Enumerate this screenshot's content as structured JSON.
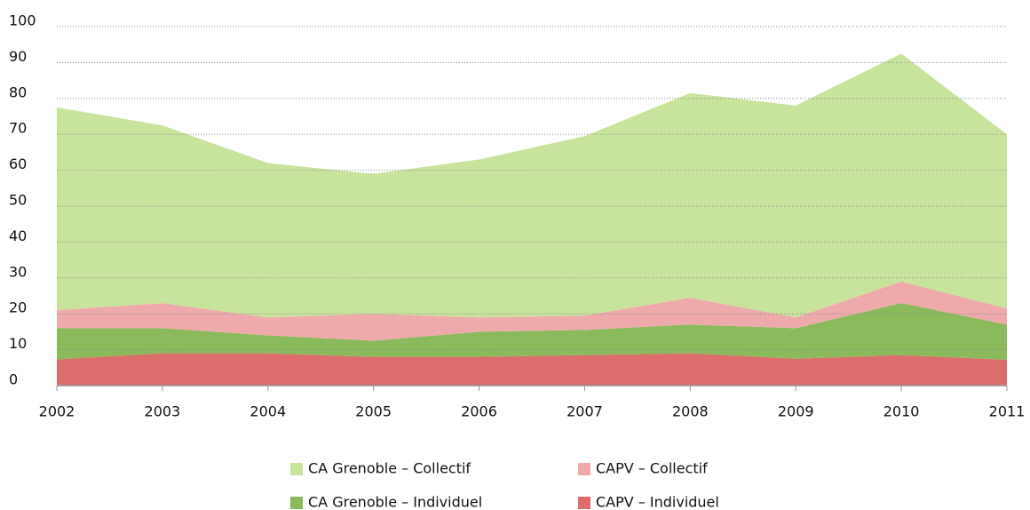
{
  "chart_data": {
    "type": "stacked-area",
    "x": [
      2002,
      2003,
      2004,
      2005,
      2006,
      2007,
      2008,
      2009,
      2010,
      2011
    ],
    "xlim": [
      2002,
      2011
    ],
    "xticks": [
      2002,
      2003,
      2004,
      2005,
      2006,
      2007,
      2008,
      2009,
      2010,
      2011
    ],
    "ylim": [
      0,
      100
    ],
    "yticks": [
      0,
      10,
      20,
      30,
      40,
      50,
      60,
      70,
      80,
      90,
      100
    ],
    "grid": true,
    "series": [
      {
        "name": "CAPV – Individuel",
        "color": "#dd6c6c",
        "values": [
          7.3,
          9,
          9,
          8,
          8,
          8.5,
          9,
          7.5,
          8.5,
          7.2
        ]
      },
      {
        "name": "CA Grenoble – Individuel",
        "color": "#8aba5c",
        "values": [
          8.7,
          7,
          5,
          4.5,
          7,
          7,
          8,
          8.5,
          14.5,
          9.8
        ]
      },
      {
        "name": "CAPV – Collectif",
        "color": "#eeaaaa",
        "values": [
          5,
          7,
          5,
          7.5,
          4,
          4,
          7.5,
          3,
          6,
          4.5
        ]
      },
      {
        "name": "CA Grenoble – Collectif",
        "color": "#c8e49c",
        "values": [
          56.5,
          49.5,
          43,
          39,
          44,
          50,
          57,
          59,
          63.5,
          48.5
        ]
      }
    ]
  }
}
